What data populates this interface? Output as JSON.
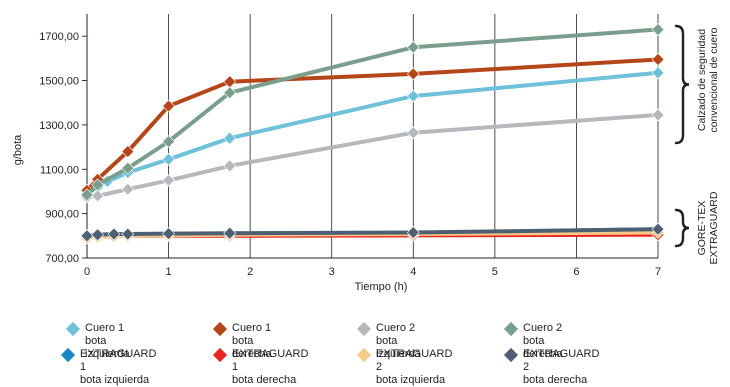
{
  "chart_data": {
    "type": "line",
    "xlabel": "Tiempo (h)",
    "ylabel": "g/bota",
    "xlim": [
      0,
      7
    ],
    "ylim": [
      700,
      1800
    ],
    "x_ticks": [
      "0",
      "1",
      "2",
      "3",
      "4",
      "5",
      "6",
      "7"
    ],
    "y_ticks": [
      "700,00",
      "900,00",
      "1100,00",
      "1300,00",
      "1500,00",
      "1700,00"
    ],
    "grid": "vertical",
    "legend_position": "bottom",
    "group_labels": [
      {
        "text": "Calzado de seguridad\nconvencional de  cuero"
      },
      {
        "text": "GORE-TEX\nEXTRAGUARD"
      }
    ],
    "series": [
      {
        "name": "Cuero 1 bota izquierda",
        "color": "#6fc0d9",
        "x": [
          0,
          0.13,
          0.25,
          0.5,
          1,
          1.75,
          4,
          7
        ],
        "y": [
          990,
          1020,
          1045,
          1085,
          1145,
          1240,
          1430,
          1535
        ]
      },
      {
        "name": "Cuero 1 bota derecha",
        "color": "#b5461a",
        "x": [
          0,
          0.13,
          0.5,
          1,
          1.75,
          4,
          7
        ],
        "y": [
          1005,
          1055,
          1180,
          1385,
          1495,
          1530,
          1595
        ]
      },
      {
        "name": "Cuero 2 bota izquierda",
        "color": "#b5b9bd",
        "x": [
          0,
          0.13,
          0.5,
          1,
          1.75,
          4,
          7
        ],
        "y": [
          975,
          980,
          1010,
          1050,
          1115,
          1265,
          1345
        ]
      },
      {
        "name": "Cuero 2 bota derecha",
        "color": "#7a9e8c",
        "x": [
          0,
          0.13,
          0.5,
          1,
          1.75,
          4,
          7
        ],
        "y": [
          985,
          1030,
          1105,
          1225,
          1445,
          1650,
          1730
        ]
      },
      {
        "name": "EXTRAGUARD  1\nbota izquierda",
        "color": "#1588c4",
        "x": [
          0,
          0.13,
          0.33,
          0.5,
          1,
          1.75,
          4,
          7
        ],
        "y": [
          800,
          803,
          805,
          805,
          808,
          810,
          812,
          830
        ]
      },
      {
        "name": "EXTRAGUARD  1\nbota derecha",
        "color": "#e8251f",
        "x": [
          0,
          0.13,
          0.33,
          0.5,
          1,
          1.75,
          4,
          7
        ],
        "y": [
          795,
          798,
          800,
          800,
          800,
          800,
          802,
          805
        ]
      },
      {
        "name": "EXTRAGUARD  2\nbota izquierda",
        "color": "#f7c98a",
        "x": [
          0,
          0.13,
          0.33,
          0.5,
          1,
          1.75,
          4,
          7
        ],
        "y": [
          790,
          795,
          797,
          800,
          802,
          805,
          808,
          815
        ]
      },
      {
        "name": "EXTRAGUARD  2\nbota derecha",
        "color": "#4d5f73",
        "x": [
          0,
          0.13,
          0.33,
          0.5,
          1,
          1.75,
          4,
          7
        ],
        "y": [
          800,
          805,
          808,
          808,
          810,
          812,
          815,
          830
        ]
      }
    ]
  }
}
